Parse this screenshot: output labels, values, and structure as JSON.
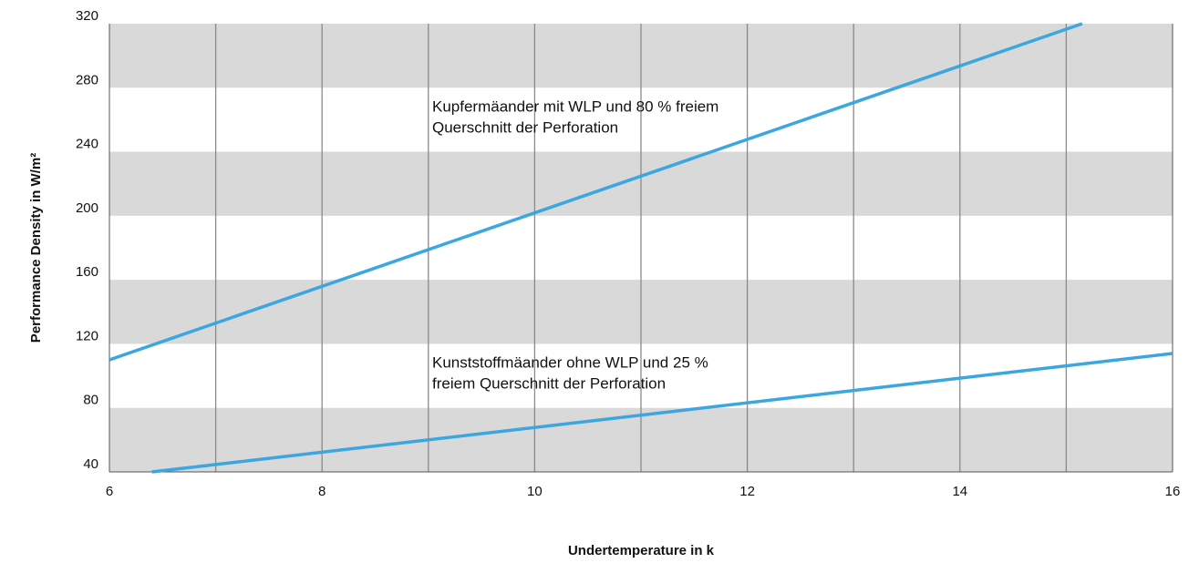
{
  "chart_data": {
    "type": "line",
    "x_label": "Undertemperature in k",
    "y_label": "Performance Density  in W/m²",
    "xlim": [
      6,
      16
    ],
    "ylim": [
      40,
      320
    ],
    "xticks": [
      6,
      8,
      10,
      12,
      14,
      16
    ],
    "xgrid": [
      7,
      8,
      9,
      10,
      11,
      12,
      13,
      14,
      15
    ],
    "yticks": [
      40,
      80,
      120,
      160,
      200,
      240,
      280,
      320
    ],
    "band_color": "#d9d9d9",
    "grid_color": "#8a8a8a",
    "series": [
      {
        "x": [
          6,
          15.15
        ],
        "values": [
          110,
          320
        ],
        "color": "#3ba6e0",
        "annotation": [
          "Kupfermäander mit WLP und 80 % freiem",
          "Querschnitt der Perforation"
        ]
      },
      {
        "x": [
          6.4,
          16
        ],
        "values": [
          40,
          114
        ],
        "color": "#3ba6e0",
        "annotation": [
          "Kunststoffmäander ohne WLP und 25 %",
          "freiem Querschnitt der Perforation"
        ]
      }
    ]
  }
}
